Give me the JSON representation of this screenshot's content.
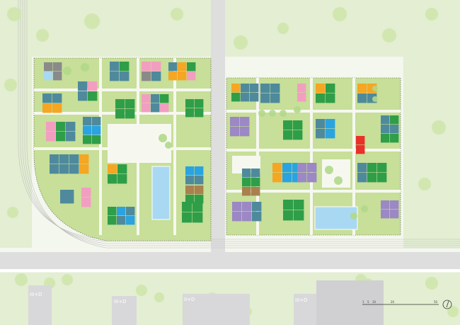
{
  "colors": {
    "background": "#f4f7ee",
    "park": "#e3eed2",
    "site_green": "#c7df98",
    "road": "#dedede",
    "tree": "#cfe6ac",
    "orange": "#f5a623",
    "teal": "#4f8a9c",
    "green": "#2f9e48",
    "pink": "#f29ec0",
    "blue": "#2aa3e0",
    "purple": "#9b88c4",
    "brown": "#a9804e",
    "red": "#e8312a",
    "lightblue": "#a9d8f2",
    "gray": "#8a8a8a"
  },
  "existing_buildings": [
    {
      "label": "III+D"
    },
    {
      "label": "III+D"
    },
    {
      "label": "II+D"
    },
    {
      "label": "III+D"
    }
  ],
  "scale_bar": {
    "ticks": [
      "1",
      "5",
      "10",
      "20",
      "50"
    ]
  },
  "north_arrow": "north-arrow-icon"
}
